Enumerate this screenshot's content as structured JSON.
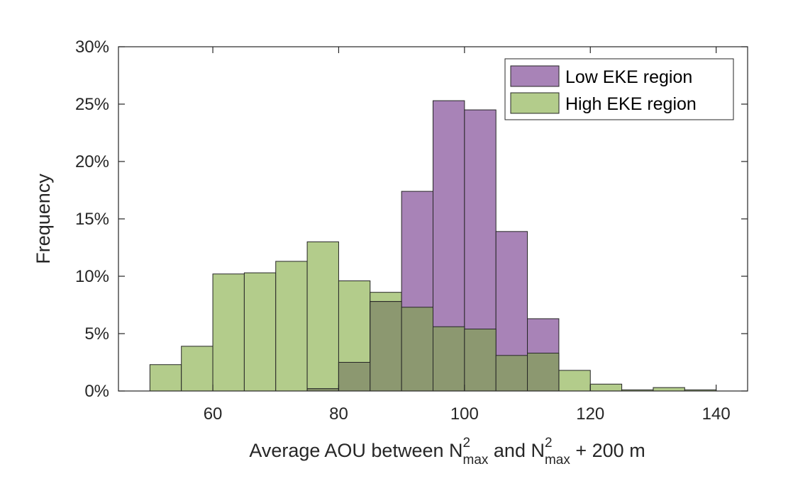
{
  "chart_data": {
    "type": "bar",
    "subtype": "overlaid-histogram",
    "bin_edges": [
      50,
      55,
      60,
      65,
      70,
      75,
      80,
      85,
      90,
      95,
      100,
      105,
      110,
      115,
      120,
      125,
      130,
      135,
      140
    ],
    "series": [
      {
        "name": "Low EKE region",
        "color": "#a883b7",
        "values": [
          0,
          0,
          0,
          0,
          0,
          0.2,
          2.5,
          7.8,
          17.4,
          25.3,
          24.5,
          13.9,
          6.3,
          0,
          0,
          0,
          0,
          0
        ]
      },
      {
        "name": "High EKE region",
        "color": "#b3cc8b",
        "values": [
          2.3,
          3.9,
          10.2,
          10.3,
          11.3,
          13.0,
          9.6,
          8.6,
          7.3,
          5.6,
          5.4,
          3.1,
          3.3,
          1.8,
          0.6,
          0.1,
          0.3,
          0.1
        ]
      }
    ],
    "overlap_color": "#8c9870",
    "xlim": [
      45,
      145
    ],
    "ylim": [
      0,
      30
    ],
    "xticks": [
      60,
      80,
      100,
      120,
      140
    ],
    "yticks": [
      0,
      5,
      10,
      15,
      20,
      25,
      30
    ],
    "ytick_labels": [
      "0%",
      "5%",
      "10%",
      "15%",
      "20%",
      "25%",
      "30%"
    ],
    "ylabel": "Frequency",
    "xlabel": {
      "prefix": "Average AOU between N",
      "sup1": "2",
      "sub1": "max",
      "middle": " and N",
      "sup2": "2",
      "sub2": "max",
      "suffix": " + 200 m"
    },
    "legend_position": "top-right",
    "grid": false
  }
}
